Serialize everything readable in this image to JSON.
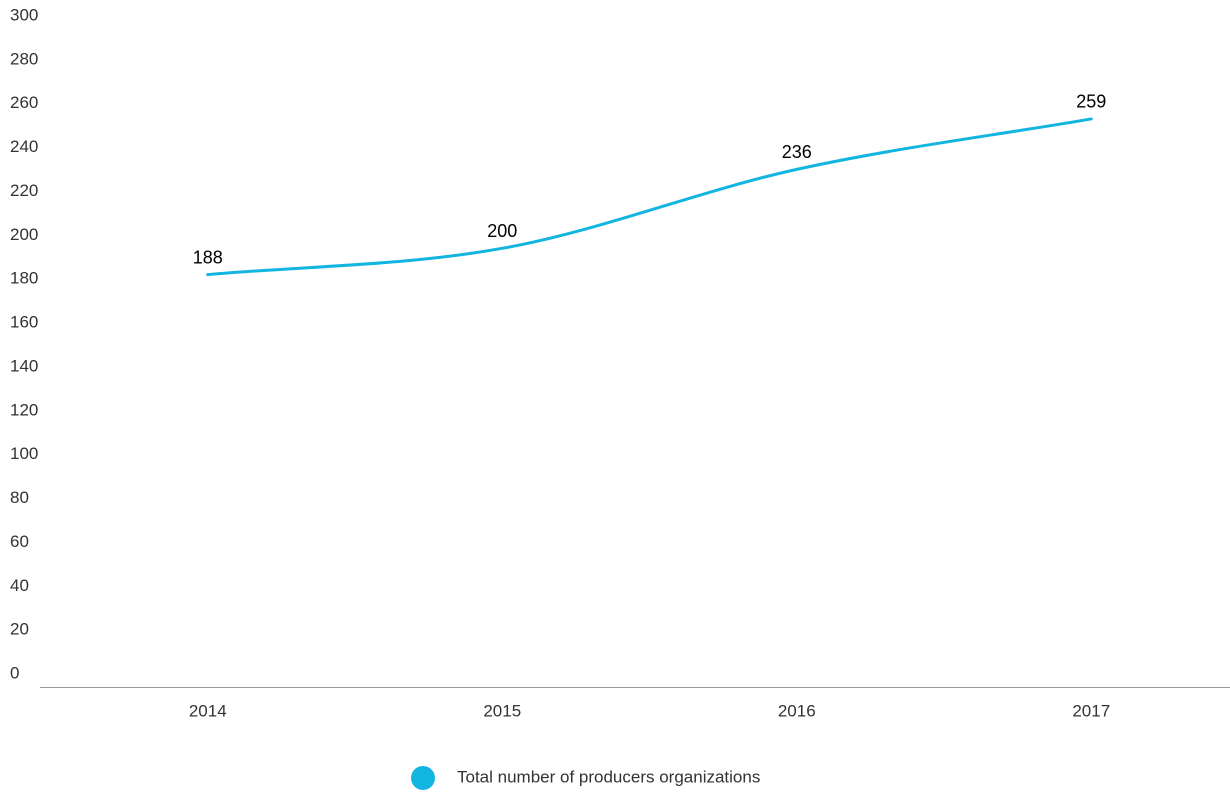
{
  "chart_data": {
    "type": "line",
    "categories": [
      "2014",
      "2015",
      "2016",
      "2017"
    ],
    "series": [
      {
        "name": "Total number of producers organizations",
        "color": "#12b5e0",
        "values": [
          188,
          200,
          236,
          259
        ]
      }
    ],
    "ylim": [
      0,
      300
    ],
    "yticks": [
      0,
      20,
      40,
      60,
      80,
      100,
      120,
      140,
      160,
      180,
      200,
      220,
      240,
      260,
      280,
      300
    ],
    "grid": false,
    "legend": "bottom"
  }
}
